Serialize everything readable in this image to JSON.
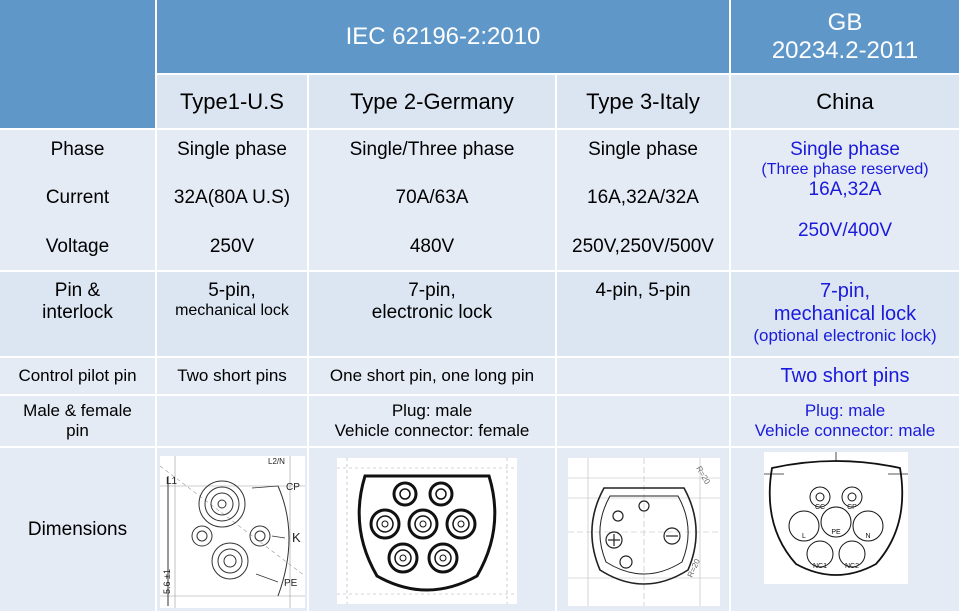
{
  "header": {
    "iec_title": "IEC 62196-2:2010",
    "gb_title_line1": "GB",
    "gb_title_line2": "20234.2-2011",
    "columns": [
      "Type1-U.S",
      "Type 2-Germany",
      "Type 3-Italy",
      "China"
    ]
  },
  "rows": {
    "phase": {
      "label": "Phase",
      "values": [
        "Single phase",
        "Single/Three phase",
        "Single phase",
        "Single phase"
      ],
      "china_note": "(Three phase reserved)"
    },
    "current": {
      "label": "Current",
      "values": [
        "32A(80A U.S)",
        "70A/63A",
        "16A,32A/32A",
        "16A,32A"
      ]
    },
    "voltage": {
      "label": "Voltage",
      "values": [
        "250V",
        "480V",
        "250V,250V/500V",
        "250V/400V"
      ]
    },
    "pin": {
      "label_line1": "Pin &",
      "label_line2": "interlock",
      "type1_line1": "5-pin,",
      "type1_line2": "mechanical lock",
      "type2_line1": "7-pin,",
      "type2_line2": "electronic lock",
      "type3": "4-pin, 5-pin",
      "china_line1": "7-pin,",
      "china_line2": "mechanical lock",
      "china_line3": "(optional electronic lock)"
    },
    "control_pilot": {
      "label": "Control pilot pin",
      "type1": "Two short pins",
      "type2": "One short pin, one long pin",
      "china": "Two short pins"
    },
    "male_female": {
      "label_line1": "Male & female",
      "label_line2": "pin",
      "type2_line1": "Plug: male",
      "type2_line2": "Vehicle connector: female",
      "china_line1": "Plug: male",
      "china_line2": "Vehicle connector: male"
    },
    "dimensions": {
      "label": "Dimensions",
      "type1_drawing": {
        "labels": [
          "L1",
          "L2/N",
          "CP",
          "K",
          "PE",
          "5.6 ±1"
        ]
      },
      "type3_drawing": {
        "labels": [
          "R=20",
          "R=20"
        ]
      },
      "china_drawing": {
        "pins": [
          "CC",
          "CP",
          "L",
          "PE",
          "N",
          "NC1",
          "NC2"
        ]
      }
    }
  },
  "colors": {
    "header_bg": "#5f97c9",
    "subheader_bg": "#dbe5f1",
    "band_bg": "#e4ebf5",
    "china_text": "#1a1adc",
    "grid": "#ffffff"
  }
}
